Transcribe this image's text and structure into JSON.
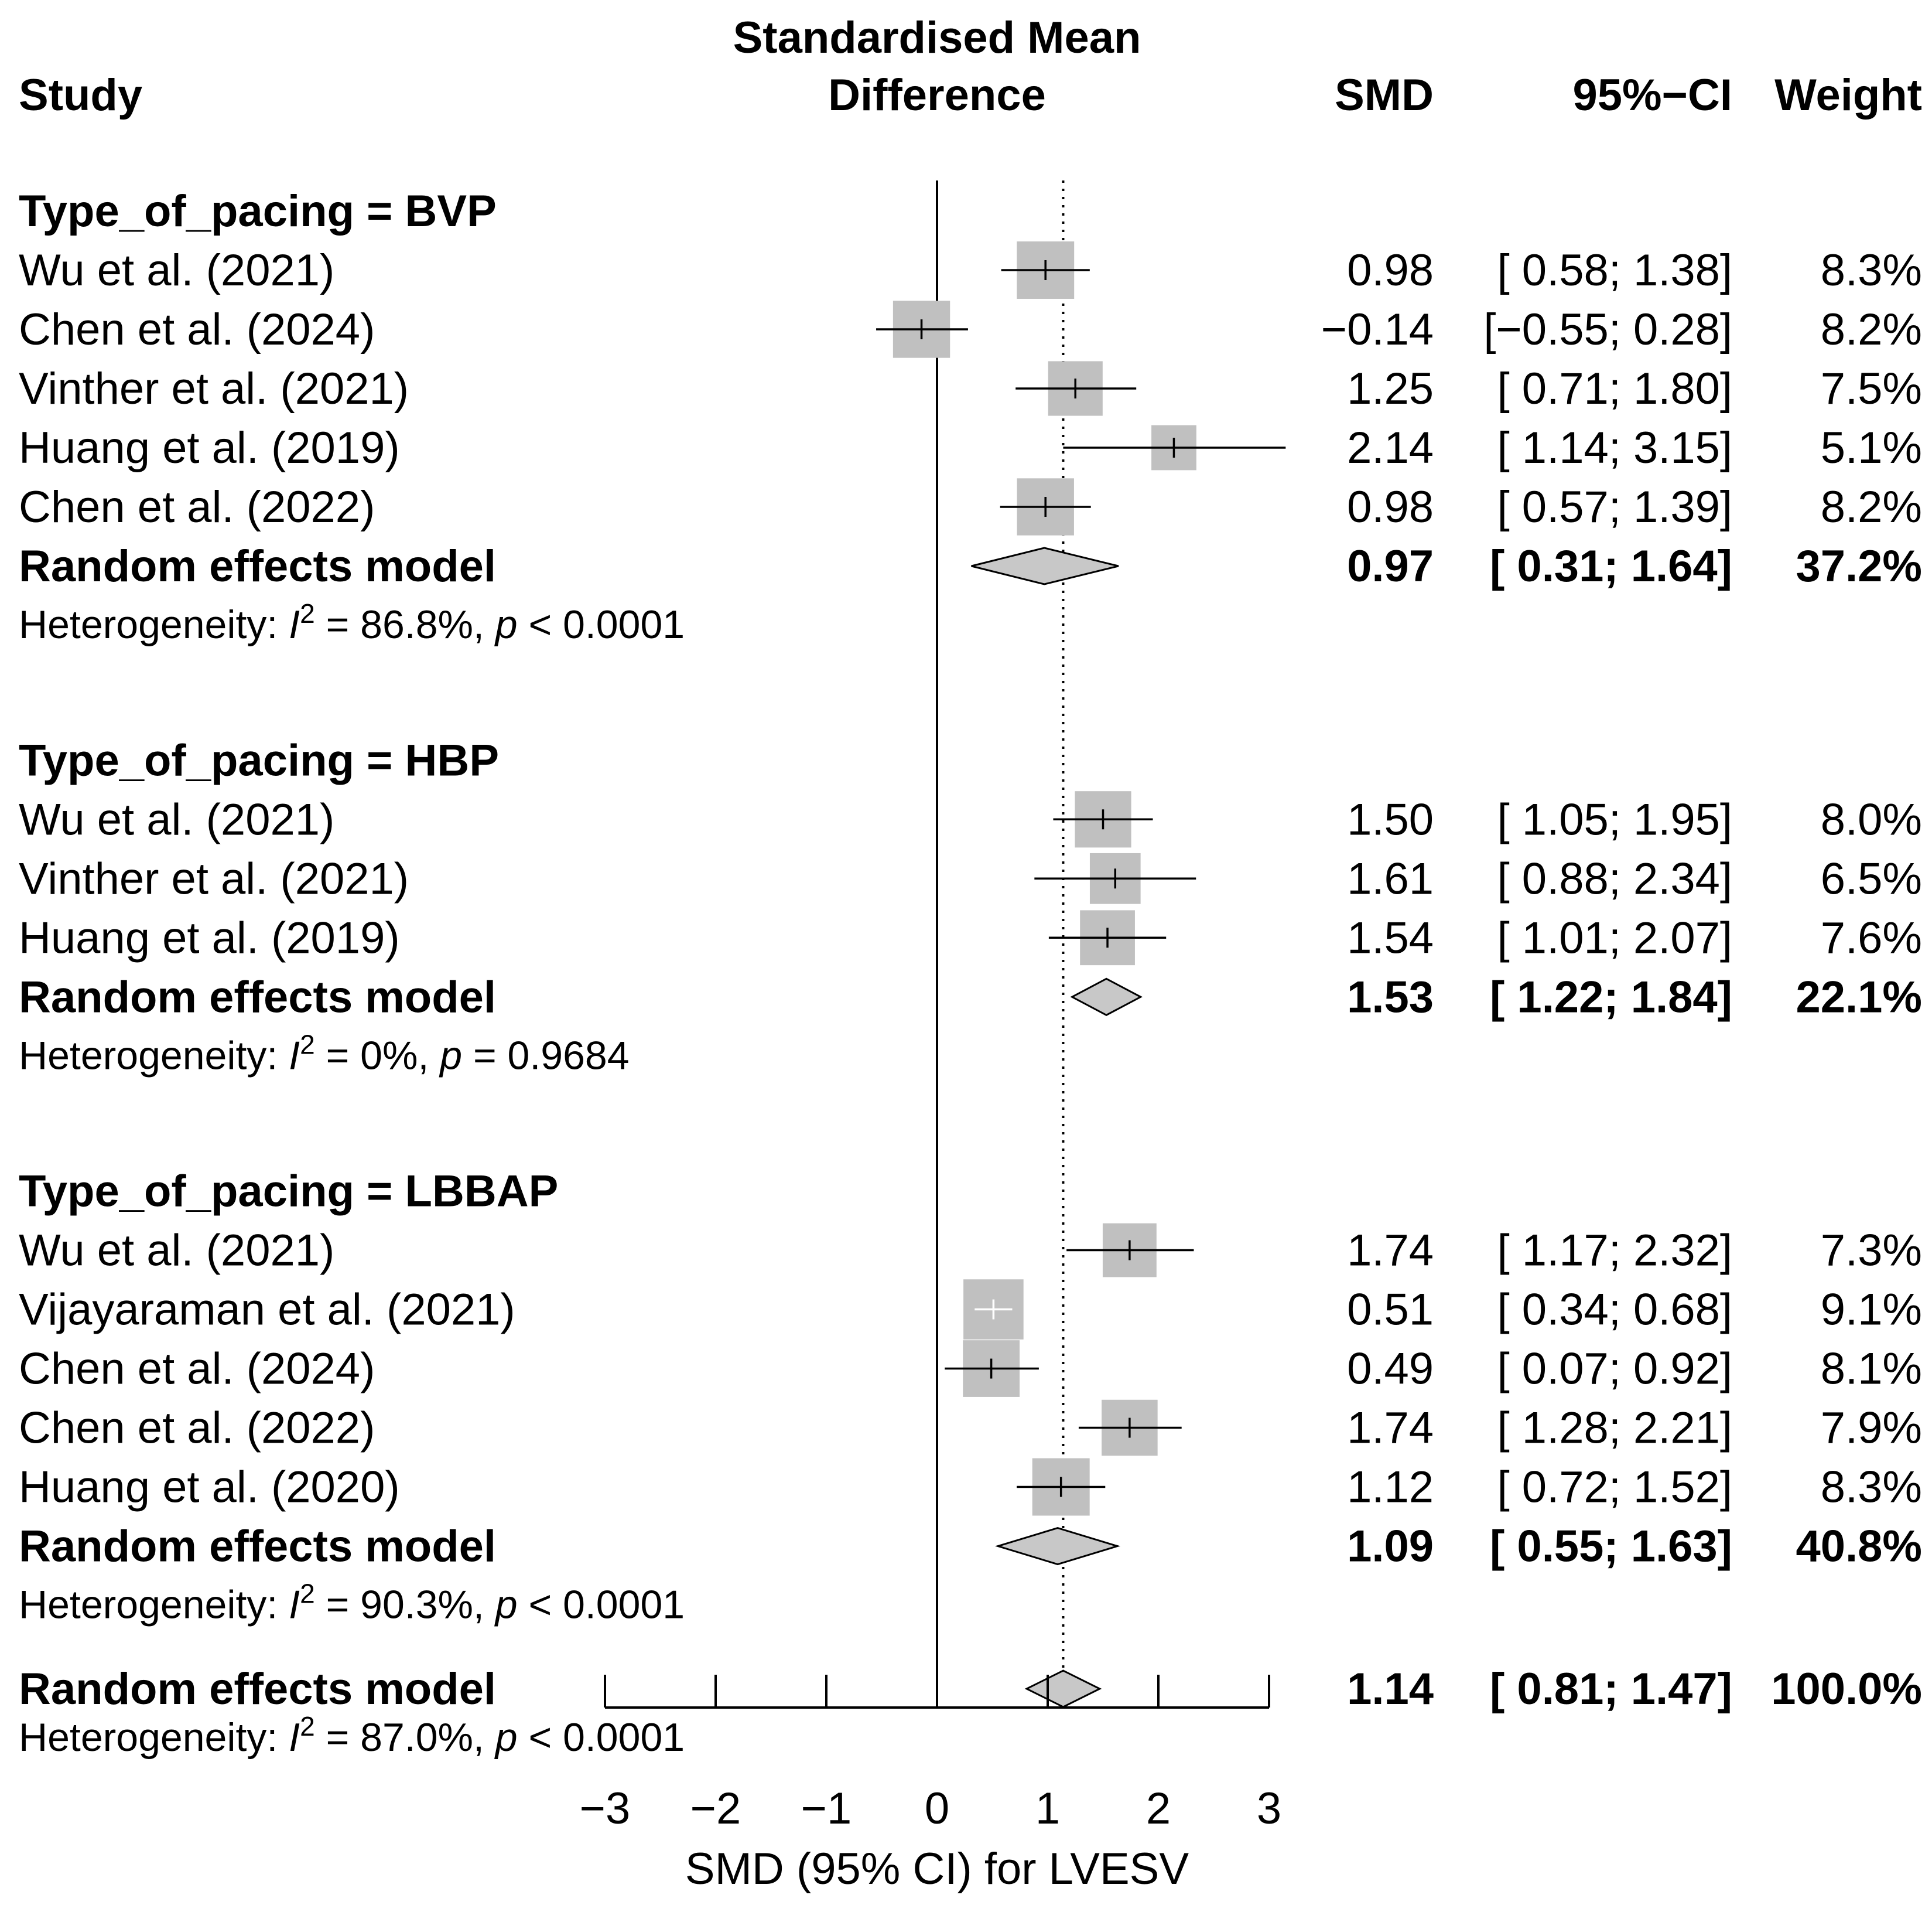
{
  "chart_data": {
    "type": "forest",
    "header": {
      "study": "Study",
      "plot_title_line1": "Standardised Mean",
      "plot_title_line2": "Difference",
      "smd": "SMD",
      "ci": "95%−CI",
      "weight": "Weight"
    },
    "xaxis": {
      "label": "SMD (95% CI) for LVESV",
      "range": [
        -3,
        3
      ],
      "ticks": [
        -3,
        -2,
        -1,
        0,
        1,
        2,
        3
      ],
      "tick_labels": [
        "−3",
        "−2",
        "−1",
        "0",
        "1",
        "2",
        "3"
      ],
      "null_line": 0,
      "reference_line": 1.14
    },
    "groups": [
      {
        "title": "Type_of_pacing = BVP",
        "studies": [
          {
            "name": "Wu et al. (2021)",
            "smd": 0.98,
            "lower": 0.58,
            "upper": 1.38,
            "smd_text": "0.98",
            "ci_text": "[ 0.58; 1.38]",
            "weight_text": "8.3%",
            "weight": 8.3
          },
          {
            "name": "Chen et al. (2024)",
            "smd": -0.14,
            "lower": -0.55,
            "upper": 0.28,
            "smd_text": "−0.14",
            "ci_text": "[−0.55; 0.28]",
            "weight_text": "8.2%",
            "weight": 8.2
          },
          {
            "name": "Vinther et al. (2021)",
            "smd": 1.25,
            "lower": 0.71,
            "upper": 1.8,
            "smd_text": "1.25",
            "ci_text": "[ 0.71; 1.80]",
            "weight_text": "7.5%",
            "weight": 7.5
          },
          {
            "name": "Huang et al. (2019)",
            "smd": 2.14,
            "lower": 1.14,
            "upper": 3.15,
            "smd_text": "2.14",
            "ci_text": "[ 1.14; 3.15]",
            "weight_text": "5.1%",
            "weight": 5.1
          },
          {
            "name": "Chen et al. (2022)",
            "smd": 0.98,
            "lower": 0.57,
            "upper": 1.39,
            "smd_text": "0.98",
            "ci_text": "[ 0.57; 1.39]",
            "weight_text": "8.2%",
            "weight": 8.2
          }
        ],
        "pooled": {
          "name": "Random effects model",
          "smd": 0.97,
          "lower": 0.31,
          "upper": 1.64,
          "smd_text": "0.97",
          "ci_text": "[ 0.31; 1.64]",
          "weight_text": "37.2%"
        },
        "heterogeneity": {
          "prefix": "Heterogeneity: ",
          "I": "I",
          "exp": "2",
          "i2_text": " = 86.8%, ",
          "p": "p",
          "p_text": " < 0.0001"
        }
      },
      {
        "title": "Type_of_pacing = HBP",
        "studies": [
          {
            "name": "Wu et al. (2021)",
            "smd": 1.5,
            "lower": 1.05,
            "upper": 1.95,
            "smd_text": "1.50",
            "ci_text": "[ 1.05; 1.95]",
            "weight_text": "8.0%",
            "weight": 8.0
          },
          {
            "name": "Vinther et al. (2021)",
            "smd": 1.61,
            "lower": 0.88,
            "upper": 2.34,
            "smd_text": "1.61",
            "ci_text": "[ 0.88; 2.34]",
            "weight_text": "6.5%",
            "weight": 6.5
          },
          {
            "name": "Huang et al. (2019)",
            "smd": 1.54,
            "lower": 1.01,
            "upper": 2.07,
            "smd_text": "1.54",
            "ci_text": "[ 1.01; 2.07]",
            "weight_text": "7.6%",
            "weight": 7.6
          }
        ],
        "pooled": {
          "name": "Random effects model",
          "smd": 1.53,
          "lower": 1.22,
          "upper": 1.84,
          "smd_text": "1.53",
          "ci_text": "[ 1.22; 1.84]",
          "weight_text": "22.1%"
        },
        "heterogeneity": {
          "prefix": "Heterogeneity: ",
          "I": "I",
          "exp": "2",
          "i2_text": " = 0%, ",
          "p": "p",
          "p_text": " = 0.9684"
        }
      },
      {
        "title": "Type_of_pacing = LBBAP",
        "studies": [
          {
            "name": "Wu et al. (2021)",
            "smd": 1.74,
            "lower": 1.17,
            "upper": 2.32,
            "smd_text": "1.74",
            "ci_text": "[ 1.17; 2.32]",
            "weight_text": "7.3%",
            "weight": 7.3
          },
          {
            "name": "Vijayaraman et al. (2021)",
            "smd": 0.51,
            "lower": 0.34,
            "upper": 0.68,
            "smd_text": "0.51",
            "ci_text": "[ 0.34; 0.68]",
            "weight_text": "9.1%",
            "weight": 9.1
          },
          {
            "name": "Chen et al. (2024)",
            "smd": 0.49,
            "lower": 0.07,
            "upper": 0.92,
            "smd_text": "0.49",
            "ci_text": "[ 0.07; 0.92]",
            "weight_text": "8.1%",
            "weight": 8.1
          },
          {
            "name": "Chen et al. (2022)",
            "smd": 1.74,
            "lower": 1.28,
            "upper": 2.21,
            "smd_text": "1.74",
            "ci_text": "[ 1.28; 2.21]",
            "weight_text": "7.9%",
            "weight": 7.9
          },
          {
            "name": "Huang et al. (2020)",
            "smd": 1.12,
            "lower": 0.72,
            "upper": 1.52,
            "smd_text": "1.12",
            "ci_text": "[ 0.72; 1.52]",
            "weight_text": "8.3%",
            "weight": 8.3
          }
        ],
        "pooled": {
          "name": "Random effects model",
          "smd": 1.09,
          "lower": 0.55,
          "upper": 1.63,
          "smd_text": "1.09",
          "ci_text": "[ 0.55; 1.63]",
          "weight_text": "40.8%"
        },
        "heterogeneity": {
          "prefix": "Heterogeneity: ",
          "I": "I",
          "exp": "2",
          "i2_text": " = 90.3%, ",
          "p": "p",
          "p_text": " < 0.0001"
        }
      }
    ],
    "overall": {
      "name": "Random effects model",
      "smd": 1.14,
      "lower": 0.81,
      "upper": 1.47,
      "smd_text": "1.14",
      "ci_text": "[ 0.81; 1.47]",
      "weight_text": "100.0%",
      "heterogeneity": {
        "prefix": "Heterogeneity: ",
        "I": "I",
        "exp": "2",
        "i2_text": " = 87.0%, ",
        "p": "p",
        "p_text": " < 0.0001"
      }
    },
    "colors": {
      "box": "#c0c0c0",
      "diamond": "#c8c8c8",
      "line": "#000000",
      "ci_inside": "#ffffff"
    }
  }
}
